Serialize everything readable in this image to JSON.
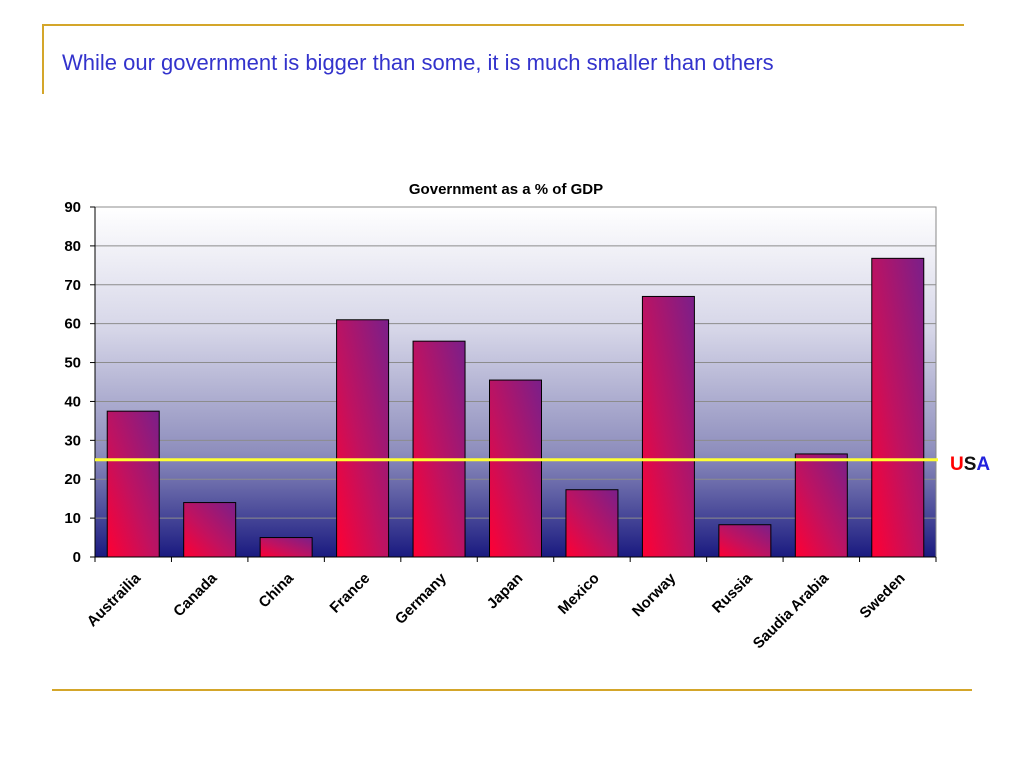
{
  "slide": {
    "title": "While our government is bigger than some, it is much smaller than others"
  },
  "colors": {
    "accent_gold": "#d4a62a",
    "title_blue": "#3333cc",
    "bar_red": "#ff0033",
    "bar_purple": "#7a1f8a",
    "reference_line": "#ffff33",
    "plot_top": "#ffffff",
    "plot_bottom": "#1a1a80"
  },
  "usa_label": {
    "letters": [
      {
        "char": "U",
        "color": "#ff0000"
      },
      {
        "char": "S",
        "color": "#111111"
      },
      {
        "char": "A",
        "color": "#2222dd"
      }
    ]
  },
  "chart_data": {
    "type": "bar",
    "title": "Government as a % of GDP",
    "xlabel": "",
    "ylabel": "",
    "categories": [
      "Austrailia",
      "Canada",
      "China",
      "France",
      "Germany",
      "Japan",
      "Mexico",
      "Norway",
      "Russia",
      "Saudia Arabia",
      "Sweden"
    ],
    "values": [
      37.5,
      14,
      5,
      61,
      55.5,
      45.5,
      17.3,
      67,
      8.3,
      26.5,
      76.8
    ],
    "ylim": [
      0,
      90
    ],
    "yticks": [
      0,
      10,
      20,
      30,
      40,
      50,
      60,
      70,
      80,
      90
    ],
    "reference_line": {
      "value": 25
    },
    "grid": true,
    "legend": "none"
  }
}
